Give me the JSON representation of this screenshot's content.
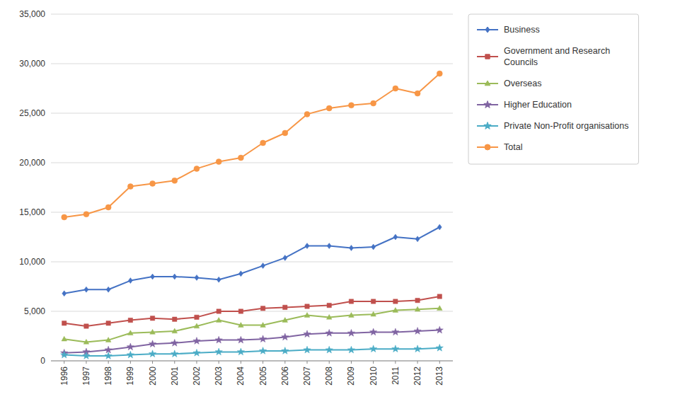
{
  "chart_data": {
    "type": "line",
    "x": [
      1996,
      1997,
      1998,
      1999,
      2000,
      2001,
      2002,
      2003,
      2004,
      2005,
      2006,
      2007,
      2008,
      2009,
      2010,
      2011,
      2012,
      2013
    ],
    "xlim": [
      1995.4,
      2013.6
    ],
    "xticks": [
      1996,
      1997,
      1998,
      1999,
      2000,
      2001,
      2002,
      2003,
      2004,
      2005,
      2006,
      2007,
      2008,
      2009,
      2010,
      2011,
      2012,
      2013
    ],
    "ylim": [
      0,
      35000
    ],
    "yticks": [
      0,
      {
        "value": 5000,
        "label": "5,000"
      },
      {
        "value": 10000,
        "label": "10,000"
      },
      {
        "value": 15000,
        "label": "15,000"
      },
      {
        "value": 20000,
        "label": "20,000"
      },
      {
        "value": 25000,
        "label": "25,000"
      },
      {
        "value": 30000,
        "label": "30,000"
      },
      {
        "value": 35000,
        "label": "35,000"
      }
    ],
    "grid": true,
    "legend": "right",
    "series": [
      {
        "name": "Business",
        "color": "#4472C4",
        "marker": "diamond",
        "values": [
          6800,
          7200,
          7200,
          8100,
          8500,
          8500,
          8400,
          8200,
          8800,
          9600,
          10400,
          11600,
          11600,
          11400,
          11500,
          12500,
          12300,
          13500
        ]
      },
      {
        "name": "Government and Research\nCouncils",
        "color": "#C0504D",
        "marker": "square",
        "values": [
          3800,
          3500,
          3800,
          4100,
          4300,
          4200,
          4400,
          5000,
          5000,
          5300,
          5400,
          5500,
          5600,
          6000,
          6000,
          6000,
          6100,
          6500
        ]
      },
      {
        "name": "Overseas",
        "color": "#9BBB59",
        "marker": "triangle",
        "values": [
          2200,
          1900,
          2100,
          2800,
          2900,
          3000,
          3500,
          4100,
          3600,
          3600,
          4100,
          4600,
          4400,
          4600,
          4700,
          5100,
          5200,
          5300
        ]
      },
      {
        "name": "Higher Education",
        "color": "#8064A2",
        "marker": "star",
        "values": [
          800,
          900,
          1100,
          1400,
          1700,
          1800,
          2000,
          2100,
          2100,
          2200,
          2400,
          2700,
          2800,
          2800,
          2900,
          2900,
          3000,
          3100
        ]
      },
      {
        "name": "Private Non-Profit organisations",
        "color": "#4BACC6",
        "marker": "star",
        "values": [
          600,
          500,
          500,
          600,
          700,
          700,
          800,
          900,
          900,
          1000,
          1000,
          1100,
          1100,
          1100,
          1200,
          1200,
          1200,
          1300
        ]
      },
      {
        "name": "Total",
        "color": "#F79646",
        "marker": "circle",
        "values": [
          14500,
          14800,
          15500,
          17600,
          17900,
          18200,
          19400,
          20100,
          20500,
          22000,
          23000,
          24900,
          25500,
          25800,
          26000,
          27500,
          27000,
          29000
        ]
      }
    ]
  }
}
